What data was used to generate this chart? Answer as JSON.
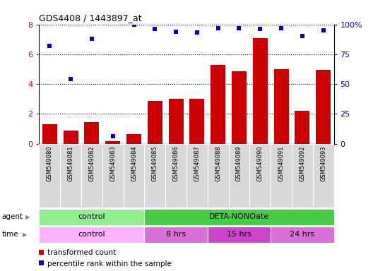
{
  "title": "GDS4408 / 1443897_at",
  "samples": [
    "GSM549080",
    "GSM549081",
    "GSM549082",
    "GSM549083",
    "GSM549084",
    "GSM549085",
    "GSM549086",
    "GSM549087",
    "GSM549088",
    "GSM549089",
    "GSM549090",
    "GSM549091",
    "GSM549092",
    "GSM549093"
  ],
  "bar_values": [
    1.3,
    0.9,
    1.45,
    0.15,
    0.65,
    2.85,
    3.0,
    3.0,
    5.3,
    4.85,
    7.1,
    5.0,
    2.2,
    4.95
  ],
  "dot_values": [
    82,
    54,
    88,
    6,
    100,
    96,
    94,
    93,
    97,
    97,
    96,
    97,
    90,
    95
  ],
  "bar_color": "#cc0000",
  "dot_color": "#0000cc",
  "ylim_left": [
    0,
    8
  ],
  "ylim_right": [
    0,
    100
  ],
  "yticks_left": [
    0,
    2,
    4,
    6,
    8
  ],
  "yticks_right": [
    0,
    25,
    50,
    75,
    100
  ],
  "yticklabels_right": [
    "0",
    "25",
    "50",
    "75",
    "100%"
  ],
  "agent_labels": [
    {
      "text": "control",
      "start": 0,
      "end": 5,
      "color": "#90ee90"
    },
    {
      "text": "DETA-NONOate",
      "start": 5,
      "end": 14,
      "color": "#44cc44"
    }
  ],
  "time_labels": [
    {
      "text": "control",
      "start": 0,
      "end": 5,
      "color": "#ffb3ff"
    },
    {
      "text": "8 hrs",
      "start": 5,
      "end": 8,
      "color": "#da70d6"
    },
    {
      "text": "15 hrs",
      "start": 8,
      "end": 11,
      "color": "#cc44cc"
    },
    {
      "text": "24 hrs",
      "start": 11,
      "end": 14,
      "color": "#da70d6"
    }
  ],
  "legend_items": [
    {
      "label": "transformed count",
      "color": "#cc0000"
    },
    {
      "label": "percentile rank within the sample",
      "color": "#0000cc"
    }
  ],
  "col_bg_color": "#d8d8d8",
  "col_border_color": "#aaaaaa"
}
